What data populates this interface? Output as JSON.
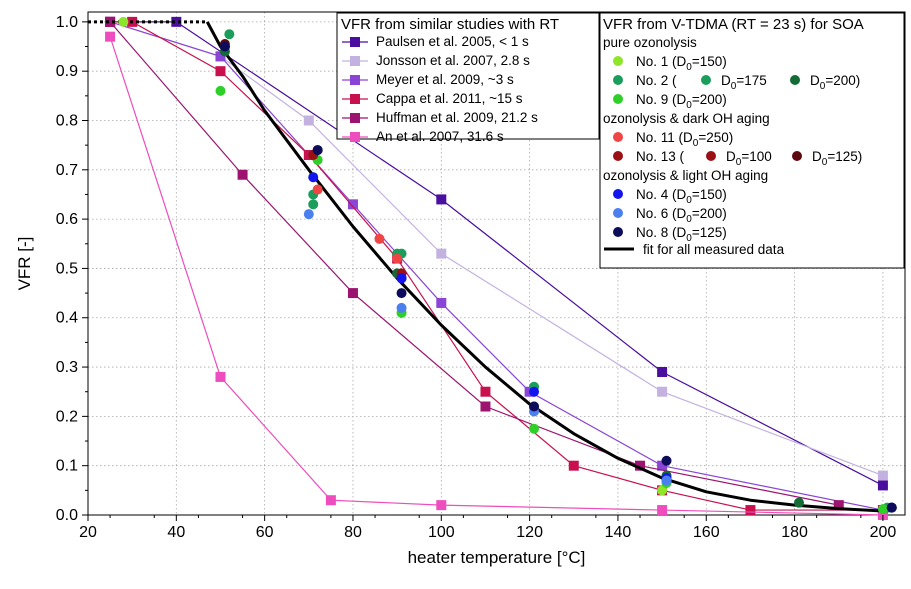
{
  "chart_data": {
    "type": "scatter",
    "xlabel": "heater temperature [°C]",
    "ylabel": "VFR [-]",
    "xlim": [
      20,
      205
    ],
    "ylim": [
      0,
      1.02
    ],
    "x_ticks": [
      20,
      40,
      60,
      80,
      100,
      120,
      140,
      160,
      180,
      200
    ],
    "y_ticks": [
      0.0,
      0.1,
      0.2,
      0.3,
      0.4,
      0.5,
      0.6,
      0.7,
      0.8,
      0.9,
      1.0
    ],
    "x_tick_labels": [
      "20",
      "40",
      "60",
      "80",
      "100",
      "120",
      "140",
      "160",
      "180",
      "200"
    ],
    "y_tick_labels": [
      "0.0",
      "0.1",
      "0.2",
      "0.3",
      "0.4",
      "0.5",
      "0.6",
      "0.7",
      "0.8",
      "0.9",
      "1.0"
    ],
    "grid": true,
    "literature_legend": {
      "title": "VFR from similar studies with RT",
      "placement": "top-center"
    },
    "measured_legend": {
      "title": "VFR from V-TDMA (RT = 23 s) for SOA",
      "placement": "top-right",
      "sections": [
        {
          "label": "pure ozonolysis",
          "entries": [
            {
              "id": "n1",
              "text_parts": [
                "No. 1 (D",
                "0",
                "=150)"
              ]
            },
            {
              "id": "n2",
              "text_parts": [
                "No. 2 (",
                "D",
                "0",
                "=175",
                "D",
                "0",
                "=200)"
              ]
            },
            {
              "id": "n9",
              "text_parts": [
                "No. 9 (D",
                "0",
                "=200)"
              ]
            }
          ]
        },
        {
          "label": "ozonolysis & dark OH aging",
          "entries": [
            {
              "id": "n11",
              "text_parts": [
                "No. 11 (D",
                "0",
                "=250)"
              ]
            },
            {
              "id": "n13",
              "text_parts": [
                "No. 13 (",
                "D",
                "0",
                "=100",
                "D",
                "0",
                "=125)"
              ]
            }
          ]
        },
        {
          "label": "ozonolysis & light OH aging",
          "entries": [
            {
              "id": "n4",
              "text_parts": [
                "No. 4 (D",
                "0",
                "=150)"
              ]
            },
            {
              "id": "n6",
              "text_parts": [
                "No. 6 (D",
                "0",
                "=200)"
              ]
            },
            {
              "id": "n8",
              "text_parts": [
                "No. 8 (D",
                "0",
                "=125)"
              ]
            }
          ]
        }
      ],
      "fit_label": "fit for all measured data"
    },
    "literature_series": [
      {
        "name": "Paulsen et al. 2005, < 1 s",
        "color": "#4b0fa0",
        "x": [
          25,
          40,
          100,
          150,
          200
        ],
        "y": [
          1.0,
          1.0,
          0.64,
          0.29,
          0.06
        ]
      },
      {
        "name": "Jonsson et al. 2007, 2.8 s",
        "color": "#c3b2e0",
        "x": [
          25,
          50,
          70,
          100,
          150,
          200
        ],
        "y": [
          1.0,
          0.93,
          0.8,
          0.53,
          0.25,
          0.08
        ]
      },
      {
        "name": "Meyer et al. 2009, ~3 s",
        "color": "#8a45d6",
        "x": [
          25,
          50,
          80,
          100,
          120,
          150,
          200
        ],
        "y": [
          1.0,
          0.93,
          0.63,
          0.43,
          0.25,
          0.1,
          0.01
        ]
      },
      {
        "name": "Cappa et al. 2011, ~15 s",
        "color": "#c8104f",
        "x": [
          25,
          30,
          50,
          70,
          90,
          110,
          130,
          150,
          170,
          200
        ],
        "y": [
          1.0,
          1.0,
          0.9,
          0.73,
          0.52,
          0.25,
          0.1,
          0.05,
          0.01,
          0.01
        ]
      },
      {
        "name": "Huffman et al. 2009, 21.2 s",
        "color": "#9c1470",
        "x": [
          25,
          55,
          80,
          110,
          145,
          190
        ],
        "y": [
          1.0,
          0.69,
          0.45,
          0.22,
          0.1,
          0.02
        ]
      },
      {
        "name": "An et al. 2007, 31.6 s",
        "color": "#ee4dbd",
        "x": [
          25,
          50,
          75,
          100,
          150,
          200
        ],
        "y": [
          0.97,
          0.28,
          0.03,
          0.02,
          0.01,
          0.0
        ]
      }
    ],
    "measured_series": [
      {
        "id": "n1",
        "color": "#8ee62a",
        "points": [
          [
            28,
            1.0
          ],
          [
            150,
            0.05
          ],
          [
            202,
            0.015
          ]
        ]
      },
      {
        "id": "n2a",
        "color": "#1b9e5b",
        "points": [
          [
            51,
            0.95
          ],
          [
            71,
            0.63
          ],
          [
            90,
            0.53
          ],
          [
            121,
            0.26
          ],
          [
            151,
            0.07
          ],
          [
            201,
            0.015
          ]
        ]
      },
      {
        "id": "n2b",
        "color": "#1b9e5b",
        "points": [
          [
            52,
            0.975
          ],
          [
            71,
            0.65
          ],
          [
            91,
            0.53
          ]
        ]
      },
      {
        "id": "n2c",
        "color": "#136b35",
        "points": [
          [
            51,
            0.94
          ],
          [
            71,
            0.73
          ],
          [
            90,
            0.49
          ],
          [
            121,
            0.22
          ],
          [
            151,
            0.08
          ],
          [
            181,
            0.025
          ],
          [
            202,
            0.015
          ]
        ]
      },
      {
        "id": "n9",
        "color": "#2ecf28",
        "points": [
          [
            50,
            0.86
          ],
          [
            72,
            0.72
          ],
          [
            91,
            0.41
          ],
          [
            121,
            0.175
          ],
          [
            151,
            0.065
          ],
          [
            200,
            0.012
          ]
        ]
      },
      {
        "id": "n11",
        "color": "#f04545",
        "points": [
          [
            72,
            0.66
          ],
          [
            86,
            0.56
          ],
          [
            90,
            0.52
          ]
        ]
      },
      {
        "id": "n13a",
        "color": "#9b1015",
        "points": [
          [
            51,
            0.95
          ],
          [
            71,
            0.73
          ],
          [
            91,
            0.49
          ]
        ]
      },
      {
        "id": "n13b",
        "color": "#5c0a10",
        "points": [
          [
            51,
            0.955
          ],
          [
            72,
            0.74
          ],
          [
            91,
            0.48
          ]
        ]
      },
      {
        "id": "n4",
        "color": "#1414ee",
        "points": [
          [
            71,
            0.685
          ],
          [
            91,
            0.48
          ],
          [
            121,
            0.25
          ],
          [
            151,
            0.075
          ],
          [
            202,
            0.015
          ]
        ]
      },
      {
        "id": "n6",
        "color": "#4b7ff0",
        "points": [
          [
            70,
            0.61
          ],
          [
            91,
            0.42
          ],
          [
            121,
            0.21
          ],
          [
            151,
            0.07
          ]
        ]
      },
      {
        "id": "n8",
        "color": "#0c0c5a",
        "points": [
          [
            51,
            0.95
          ],
          [
            72,
            0.74
          ],
          [
            91,
            0.45
          ],
          [
            121,
            0.22
          ],
          [
            151,
            0.11
          ],
          [
            202,
            0.015
          ]
        ]
      }
    ],
    "fit": {
      "label": "fit for all measured data",
      "color": "#000000",
      "dotted_segment": {
        "x": [
          20,
          47
        ],
        "y": [
          1.0,
          1.0
        ]
      },
      "x": [
        47,
        50,
        55,
        60,
        70,
        80,
        90,
        100,
        110,
        120,
        130,
        140,
        150,
        160,
        170,
        180,
        190,
        200
      ],
      "y": [
        1.0,
        0.95,
        0.89,
        0.82,
        0.7,
        0.585,
        0.48,
        0.385,
        0.3,
        0.225,
        0.165,
        0.115,
        0.075,
        0.047,
        0.03,
        0.02,
        0.013,
        0.008
      ]
    }
  }
}
